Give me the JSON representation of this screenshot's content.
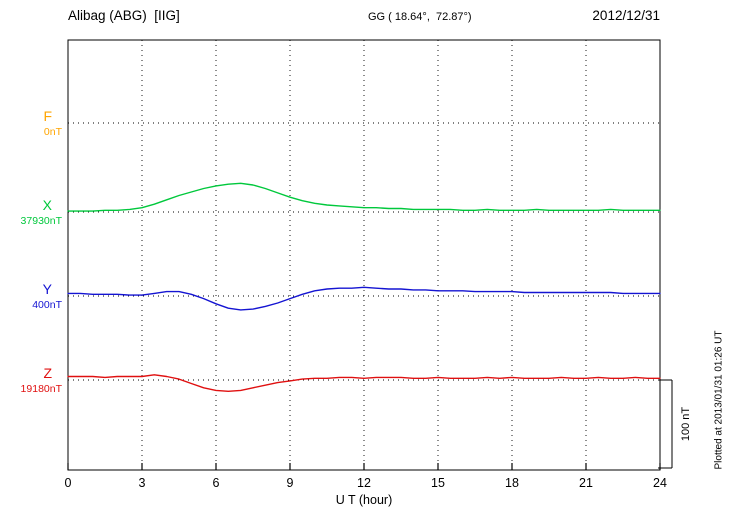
{
  "header": {
    "station": "Alibag (ABG)  [IIG]",
    "coordinates": "GG ( 18.64°,  72.87°)",
    "date": "2012/12/31"
  },
  "scale_bar": {
    "label": "100 nT"
  },
  "footer": {
    "plotted_at": "Plotted at 2013/01/31 01:26 UT"
  },
  "chart_data": {
    "type": "line",
    "title": "Alibag (ABG) [IIG] magnetogram for 2012/12/31",
    "xlabel": "U T (hour)",
    "xlim": [
      0,
      24
    ],
    "xticks": [
      0,
      3,
      6,
      9,
      12,
      15,
      18,
      21,
      24
    ],
    "units": "nT, offset from each component baseline",
    "scale_bar_nT": 100,
    "grid": "dotted vertical lines at 3-hour intervals, dotted horizontal baseline per component",
    "x": [
      0,
      0.5,
      1,
      1.5,
      2,
      2.5,
      3,
      3.5,
      4,
      4.5,
      5,
      5.5,
      6,
      6.5,
      7,
      7.5,
      8,
      8.5,
      9,
      9.5,
      10,
      10.5,
      11,
      11.5,
      12,
      12.5,
      13,
      13.5,
      14,
      14.5,
      15,
      15.5,
      16,
      16.5,
      17,
      17.5,
      18,
      18.5,
      19,
      19.5,
      20,
      20.5,
      21,
      21.5,
      22,
      22.5,
      23,
      23.5,
      24
    ],
    "series": [
      {
        "name": "F",
        "baseline_label": "0nT",
        "color": "#FFA500",
        "values": []
      },
      {
        "name": "X",
        "baseline_label": "37930nT",
        "color": "#00C83C",
        "values": [
          1,
          1,
          1,
          2,
          2,
          3,
          5,
          9,
          14,
          19,
          23,
          27,
          30,
          32,
          33,
          31,
          27,
          22,
          17,
          13,
          10,
          8,
          7,
          6,
          5,
          5,
          4,
          4,
          3,
          3,
          3,
          3,
          2,
          2,
          3,
          2,
          2,
          2,
          3,
          2,
          2,
          2,
          2,
          2,
          3,
          2,
          2,
          2,
          2
        ]
      },
      {
        "name": "Y",
        "baseline_label": "400nT",
        "color": "#1414D2",
        "values": [
          3,
          3,
          2,
          2,
          2,
          1,
          1,
          3,
          5,
          5,
          2,
          -3,
          -9,
          -14,
          -16,
          -15,
          -12,
          -8,
          -3,
          2,
          6,
          8,
          9,
          9,
          10,
          9,
          8,
          8,
          7,
          7,
          6,
          6,
          6,
          5,
          5,
          5,
          5,
          4,
          4,
          4,
          4,
          4,
          4,
          4,
          4,
          3,
          3,
          3,
          3
        ]
      },
      {
        "name": "Z",
        "baseline_label": "19180nT",
        "color": "#E01010",
        "values": [
          4,
          4,
          4,
          3,
          4,
          4,
          4,
          6,
          4,
          1,
          -4,
          -9,
          -12,
          -13,
          -12,
          -9,
          -6,
          -3,
          -1,
          1,
          2,
          2,
          3,
          3,
          2,
          3,
          3,
          3,
          2,
          2,
          3,
          2,
          2,
          2,
          3,
          2,
          3,
          2,
          2,
          2,
          3,
          2,
          2,
          3,
          2,
          2,
          3,
          2,
          2
        ]
      }
    ]
  }
}
